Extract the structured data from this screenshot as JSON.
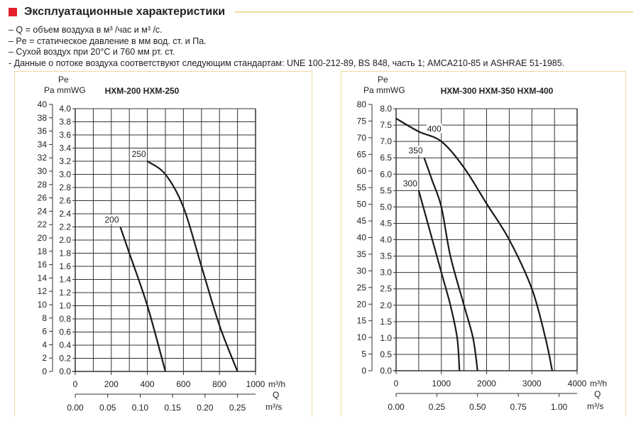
{
  "header": {
    "title": "Эксплуатационные характеристики",
    "notes": [
      "– Q = объем воздуха в м³ /час и м³ /с.",
      "– Pe = статическое давление в мм вод. ст. и Па.",
      "– Сухой воздух при 20°C и 760 мм рт. ст.",
      "- Данные о потоке воздуха соответствуют следующим стандартам: UNE 100-212-89, BS 848, часть 1; AMCA210-85 и ASHRAE 51-1985."
    ]
  },
  "colors": {
    "accent": "#e3202a",
    "frame": "#f0d9a0"
  },
  "chart_data": [
    {
      "type": "line",
      "title": "HXM-200   HXM-250",
      "ylabel_top": "Pe",
      "ylabel_left": "Pa",
      "ylabel_right": "mmWG",
      "xlabel": "Q",
      "xunit": "m³/h",
      "x2unit": "m³/s",
      "xlim": [
        0,
        1000
      ],
      "xticks": [
        0,
        200,
        400,
        600,
        800,
        1000
      ],
      "ylim": [
        0,
        4.0
      ],
      "yticks": [
        "0.0",
        "0.2",
        "0.4",
        "0.6",
        "0.8",
        "1.0",
        "1.2",
        "1.4",
        "1.6",
        "1.8",
        "2.0",
        "2.2",
        "2.4",
        "2.6",
        "2.8",
        "3.0",
        "3.2",
        "3.4",
        "3.6",
        "3.8",
        "4.0"
      ],
      "pa_ticks": [
        0,
        2,
        4,
        6,
        8,
        10,
        12,
        14,
        16,
        18,
        20,
        22,
        24,
        26,
        28,
        30,
        32,
        34,
        36,
        38,
        40
      ],
      "pa_lim": [
        0,
        40
      ],
      "x2ticks": [
        "0.00",
        "0.05",
        "0.10",
        "0.15",
        "0.20",
        "0.25"
      ],
      "x2lim": [
        0,
        0.2778
      ],
      "grid": true,
      "series": [
        {
          "name": "200",
          "x": [
            250,
            300,
            400,
            500
          ],
          "y": [
            2.2,
            1.8,
            1.0,
            0
          ]
        },
        {
          "name": "250",
          "x": [
            400,
            500,
            600,
            700,
            800,
            900
          ],
          "y": [
            3.2,
            3.0,
            2.5,
            1.6,
            0.7,
            0
          ]
        }
      ]
    },
    {
      "type": "line",
      "title": "HXM-300   HXM-350   HXM-400",
      "ylabel_top": "Pe",
      "ylabel_left": "Pa",
      "ylabel_right": "mmWG",
      "xlabel": "Q",
      "xunit": "m³/h",
      "x2unit": "m³/s",
      "xlim": [
        0,
        4000
      ],
      "xticks": [
        0,
        1000,
        2000,
        3000,
        4000
      ],
      "ylim": [
        0,
        8.0
      ],
      "yticks": [
        "0.0",
        "0.5",
        "1.0",
        "1.5",
        "2.0",
        "2.5",
        "3.0",
        "3.5",
        "4.0",
        "4.5",
        "5.0",
        "5.5",
        "6.0",
        "6.5",
        "7.0",
        "7.5",
        "8.0"
      ],
      "pa_ticks": [
        0,
        5,
        10,
        15,
        20,
        25,
        30,
        35,
        40,
        45,
        50,
        55,
        60,
        65,
        70,
        75,
        80
      ],
      "pa_lim": [
        0,
        80
      ],
      "x2ticks": [
        "0.00",
        "0.25",
        "0.50",
        "0.75",
        "1.00"
      ],
      "x2lim": [
        0,
        1.111
      ],
      "grid": true,
      "series": [
        {
          "name": "300",
          "x": [
            500,
            700,
            1000,
            1200,
            1350,
            1400
          ],
          "y": [
            5.5,
            4.5,
            3.0,
            2.0,
            1.0,
            0
          ]
        },
        {
          "name": "350",
          "x": [
            620,
            800,
            1000,
            1200,
            1500,
            1700,
            1800
          ],
          "y": [
            6.5,
            5.8,
            5.0,
            3.5,
            2.0,
            1.0,
            0
          ]
        },
        {
          "name": "400",
          "x": [
            0,
            500,
            1000,
            1500,
            2000,
            2500,
            3000,
            3300,
            3450
          ],
          "y": [
            7.7,
            7.3,
            7.0,
            6.2,
            5.1,
            4.0,
            2.5,
            1.0,
            0
          ]
        }
      ]
    }
  ]
}
